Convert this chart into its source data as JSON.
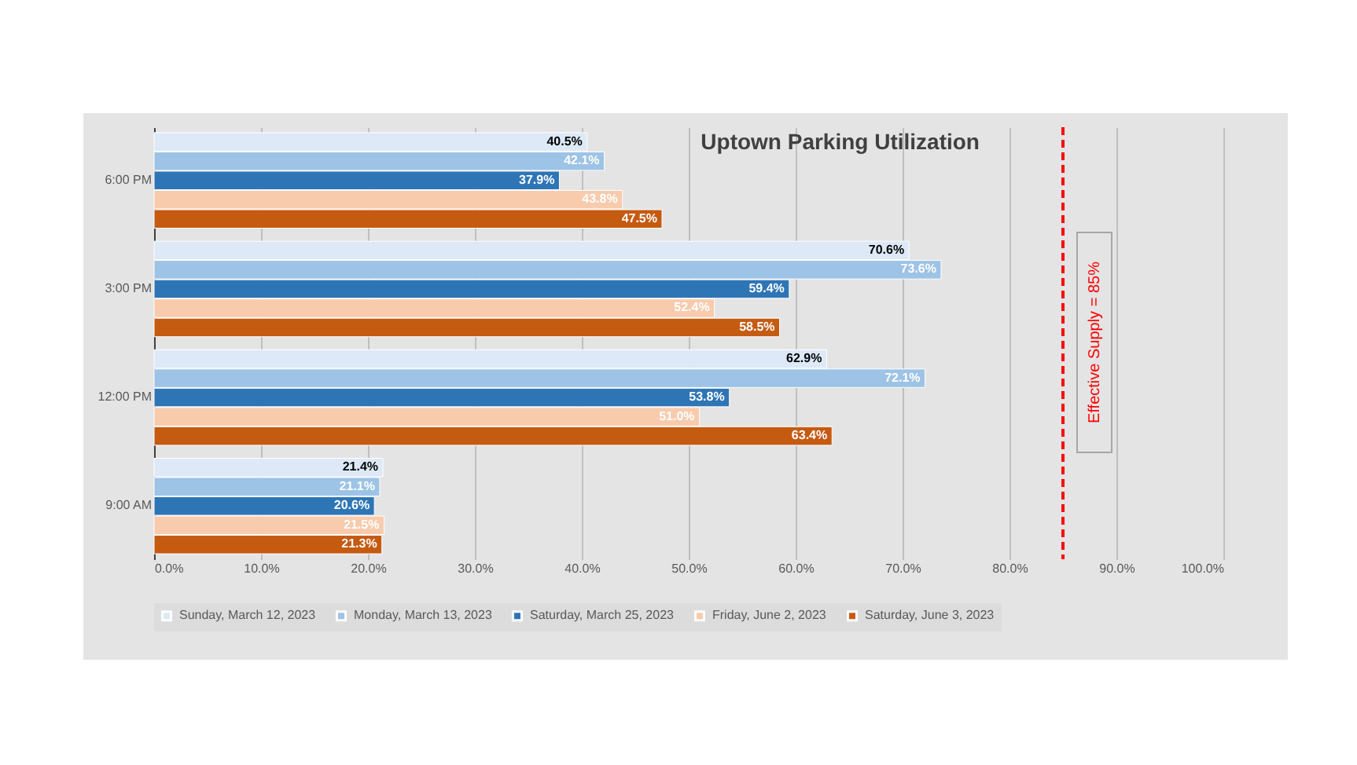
{
  "chart_data": {
    "type": "bar",
    "orientation": "horizontal",
    "title": "Uptown Parking Utilization",
    "categories": [
      "6:00 PM",
      "3:00 PM",
      "12:00 PM",
      "9:00 AM"
    ],
    "series": [
      {
        "name": "Sunday, March 12, 2023",
        "color": "#dde9f6",
        "values": [
          40.5,
          70.6,
          62.9,
          21.4
        ],
        "value_labels": [
          "40.5%",
          "70.6%",
          "62.9%",
          "21.4%"
        ]
      },
      {
        "name": "Monday, March 13, 2023",
        "color": "#9dc3e6",
        "values": [
          42.1,
          73.6,
          72.1,
          21.1
        ],
        "value_labels": [
          "42.1%",
          "73.6%",
          "72.1%",
          "21.1%"
        ]
      },
      {
        "name": "Saturday, March 25, 2023",
        "color": "#2e75b6",
        "values": [
          37.9,
          59.4,
          53.8,
          20.6
        ],
        "value_labels": [
          "37.9%",
          "59.4%",
          "53.8%",
          "20.6%"
        ]
      },
      {
        "name": "Friday, June 2, 2023",
        "color": "#f8cbad",
        "values": [
          43.8,
          52.4,
          51.0,
          21.5
        ],
        "value_labels": [
          "43.8%",
          "52.4%",
          "51.0%",
          "21.5%"
        ]
      },
      {
        "name": "Saturday, June 3, 2023",
        "color": "#c55a11",
        "values": [
          47.5,
          58.5,
          63.4,
          21.3
        ],
        "value_labels": [
          "47.5%",
          "58.5%",
          "63.4%",
          "21.3%"
        ]
      }
    ],
    "xlim": [
      0,
      100
    ],
    "xticks": [
      {
        "value": 0,
        "label": "0.0%"
      },
      {
        "value": 10,
        "label": "10.0%"
      },
      {
        "value": 20,
        "label": "20.0%"
      },
      {
        "value": 30,
        "label": "30.0%"
      },
      {
        "value": 40,
        "label": "40.0%"
      },
      {
        "value": 50,
        "label": "50.0%"
      },
      {
        "value": 60,
        "label": "60.0%"
      },
      {
        "value": 70,
        "label": "70.0%"
      },
      {
        "value": 80,
        "label": "80.0%"
      },
      {
        "value": 90,
        "label": "90.0%"
      },
      {
        "value": 100,
        "label": "100.0%"
      }
    ],
    "ref_lines": [
      {
        "axis": "x",
        "value": 85,
        "label": "Effective Supply = 85%",
        "color": "#ff0000",
        "line_style": "dashed"
      }
    ],
    "grid": "x",
    "legend": "bottom"
  }
}
